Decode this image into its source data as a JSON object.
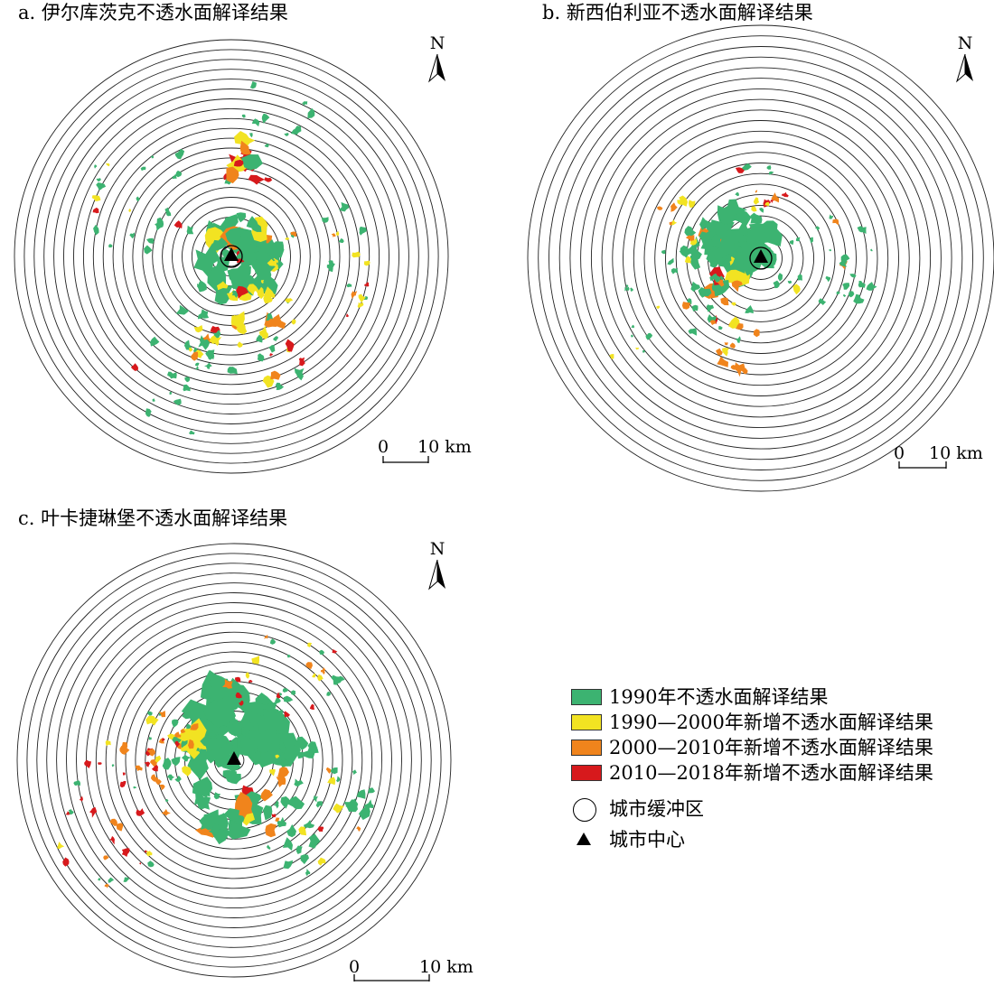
{
  "panels": [
    {
      "id": "a",
      "title": "a. 伊尔库茨克不透水面解译结果",
      "north_label": "N",
      "scale_start": "0",
      "scale_end": "10 km"
    },
    {
      "id": "b",
      "title": "b. 新西伯利亚不透水面解译结果",
      "north_label": "N",
      "scale_start": "0",
      "scale_end": "10 km"
    },
    {
      "id": "c",
      "title": "c. 叶卡捷琳堡不透水面解译结果",
      "north_label": "N",
      "scale_start": "0",
      "scale_end": "10 km"
    }
  ],
  "legend": {
    "items": [
      {
        "label": "1990年不透水面解译结果",
        "color": "#3CB371"
      },
      {
        "label": "1990—2000年新增不透水面解译结果",
        "color": "#F2E322"
      },
      {
        "label": "2000—2010年新增不透水面解译结果",
        "color": "#F0841C"
      },
      {
        "label": "2010—2018年新增不透水面解译结果",
        "color": "#D7191C"
      }
    ],
    "buffer_label": "城市缓冲区",
    "center_label": "城市中心"
  },
  "colors": {
    "ring": "#222222",
    "background": "#ffffff"
  }
}
